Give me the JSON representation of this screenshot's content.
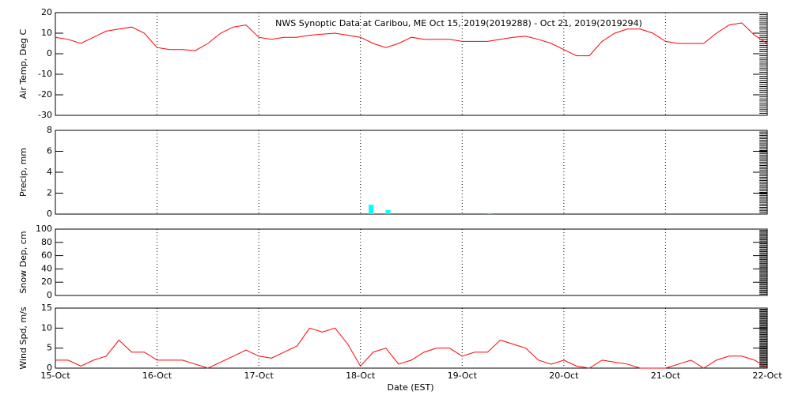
{
  "chart_data": [
    {
      "type": "line",
      "title": "NWS Synoptic Data at Caribou, ME   Oct 15, 2019(2019288) - Oct 21, 2019(2019294)",
      "y_label": "Air Temp, Deg C",
      "color": "#ff0000",
      "x": [
        0,
        3,
        6,
        9,
        12,
        15,
        18,
        21,
        24,
        27,
        30,
        33,
        36,
        39,
        42,
        45,
        48,
        51,
        54,
        57,
        60,
        63,
        66,
        69,
        72,
        75,
        78,
        81,
        84,
        87,
        90,
        93,
        96,
        99,
        102,
        105,
        108,
        111,
        114,
        117,
        120,
        123,
        126,
        129,
        132,
        135,
        138,
        141,
        144,
        147,
        150,
        153,
        156,
        159,
        162,
        165,
        168
      ],
      "values": [
        8,
        7,
        5,
        8,
        11,
        12,
        13,
        10,
        3,
        2,
        2,
        1.5,
        5,
        10,
        13,
        14,
        8,
        7,
        8,
        8,
        9,
        9.5,
        10,
        9,
        8,
        5,
        3,
        5,
        8,
        7,
        7,
        7,
        6,
        6,
        6,
        7,
        8,
        8.5,
        7,
        5,
        2,
        -1,
        -1,
        6,
        10,
        12,
        12,
        10,
        6,
        5,
        5,
        5,
        10,
        14,
        15,
        9,
        5
      ],
      "xlim": [
        0,
        168
      ],
      "ylim": [
        -30,
        20
      ],
      "yticks": [
        -30,
        -20,
        -10,
        0,
        10,
        20
      ]
    },
    {
      "type": "bar",
      "y_label": "Precip, mm",
      "color": "#00ffff",
      "x": [
        74.5,
        78.5,
        102.5
      ],
      "values": [
        0.9,
        0.4,
        0.1
      ],
      "xlim": [
        0,
        168
      ],
      "ylim": [
        0,
        8
      ],
      "yticks": [
        0,
        2,
        4,
        6,
        8
      ]
    },
    {
      "type": "line",
      "y_label": "Snow Dep, cm",
      "color": "#ff0000",
      "xlim": [
        0,
        168
      ],
      "ylim": [
        0,
        100
      ],
      "yticks": [
        0,
        20,
        40,
        60,
        80,
        100
      ]
    },
    {
      "type": "line",
      "y_label": "Wind Spd, m/s",
      "x_label": "Date (EST)",
      "color": "#ff0000",
      "x": [
        0,
        3,
        6,
        9,
        12,
        15,
        18,
        21,
        24,
        27,
        30,
        33,
        36,
        39,
        42,
        45,
        48,
        51,
        54,
        57,
        60,
        63,
        66,
        69,
        72,
        75,
        78,
        81,
        84,
        87,
        90,
        93,
        96,
        99,
        102,
        105,
        108,
        111,
        114,
        117,
        120,
        123,
        126,
        129,
        132,
        135,
        138,
        141,
        144,
        147,
        150,
        153,
        156,
        159,
        162,
        165,
        168
      ],
      "values": [
        2,
        2,
        0.5,
        2,
        3,
        7,
        4,
        4,
        2,
        2,
        2,
        1,
        0,
        1.5,
        3,
        4.5,
        3,
        2.5,
        4,
        5.5,
        10,
        9,
        10,
        6,
        0.5,
        4,
        5,
        1,
        2,
        4,
        5,
        5,
        3,
        4,
        4,
        7,
        6,
        5,
        2,
        1,
        2,
        0.5,
        0,
        2,
        1.5,
        1,
        0,
        0,
        0,
        1,
        2,
        0,
        2,
        3,
        3,
        2,
        0
      ],
      "xlim": [
        0,
        168
      ],
      "ylim": [
        0,
        15
      ],
      "yticks": [
        0,
        5,
        10,
        15
      ],
      "xticks": [
        {
          "value": 0,
          "label": "15-Oct"
        },
        {
          "value": 24,
          "label": "16-Oct"
        },
        {
          "value": 48,
          "label": "17-Oct"
        },
        {
          "value": 72,
          "label": "18-Oct"
        },
        {
          "value": 96,
          "label": "19-Oct"
        },
        {
          "value": 120,
          "label": "20-Oct"
        },
        {
          "value": 144,
          "label": "21-Oct"
        },
        {
          "value": 168,
          "label": "22-Oct"
        }
      ]
    }
  ]
}
